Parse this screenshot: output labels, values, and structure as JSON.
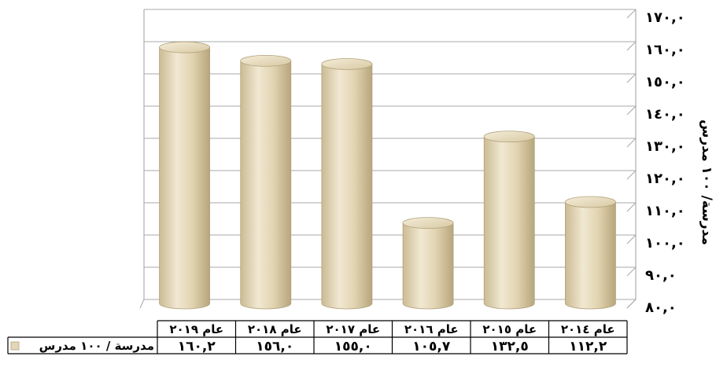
{
  "chart_data": {
    "type": "bar",
    "style": "3d-cylinder",
    "orientation": "right-to-left",
    "categories": [
      "عام ٢٠١٤",
      "عام ٢٠١٥",
      "عام ٢٠١٦",
      "عام ٢٠١٧",
      "عام ٢٠١٨",
      "عام ٢٠١٩"
    ],
    "series": [
      {
        "name": "مدرسة / ١٠٠ مدرس",
        "values": [
          112.2,
          132.5,
          105.7,
          155.0,
          156.0,
          160.2
        ],
        "value_labels": [
          "١١٢,٢",
          "١٣٢,٥",
          "١٠٥,٧",
          "١٥٥,٠",
          "١٥٦,٠",
          "١٦٠,٢"
        ],
        "color": "#e3d6b6"
      }
    ],
    "ylabel": "مدرسة/ ١٠٠ مدرس",
    "ylim": [
      80,
      170
    ],
    "y_ticks": [
      80,
      90,
      100,
      110,
      120,
      130,
      140,
      150,
      160,
      170
    ],
    "y_tick_labels": [
      "٨٠,٠",
      "٩٠,٠",
      "١٠٠,٠",
      "١١٠,٠",
      "١٢٠,٠",
      "١٣٠,٠",
      "١٤٠,٠",
      "١٥٠,٠",
      "١٦٠,٠",
      "١٧٠,٠"
    ],
    "y_axis_position": "right",
    "grid": true,
    "data_table": true,
    "legend_position": "data-table-left"
  }
}
